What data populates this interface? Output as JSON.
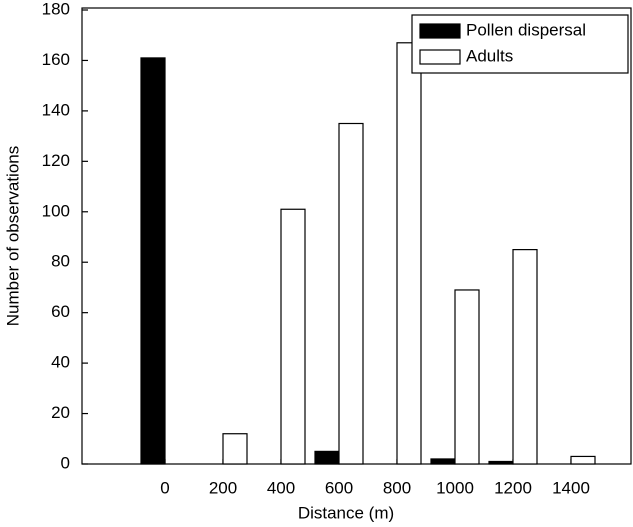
{
  "chart_data": {
    "type": "bar",
    "x_label": "Distance (m)",
    "y_label": "Number of observations",
    "categories": [
      "0",
      "200",
      "400",
      "600",
      "800",
      "1000",
      "1200",
      "1400"
    ],
    "series": [
      {
        "name": "Pollen dispersal",
        "color": "#000000",
        "values": [
          161,
          0,
          0,
          5,
          0,
          2,
          1,
          0
        ]
      },
      {
        "name": "Adults",
        "color": "#ffffff",
        "values": [
          0,
          12,
          101,
          135,
          167,
          69,
          85,
          3
        ]
      }
    ],
    "ylim": [
      0,
      180
    ],
    "yticks": [
      0,
      20,
      40,
      60,
      80,
      100,
      120,
      140,
      160,
      180
    ],
    "legend": "top-right"
  }
}
